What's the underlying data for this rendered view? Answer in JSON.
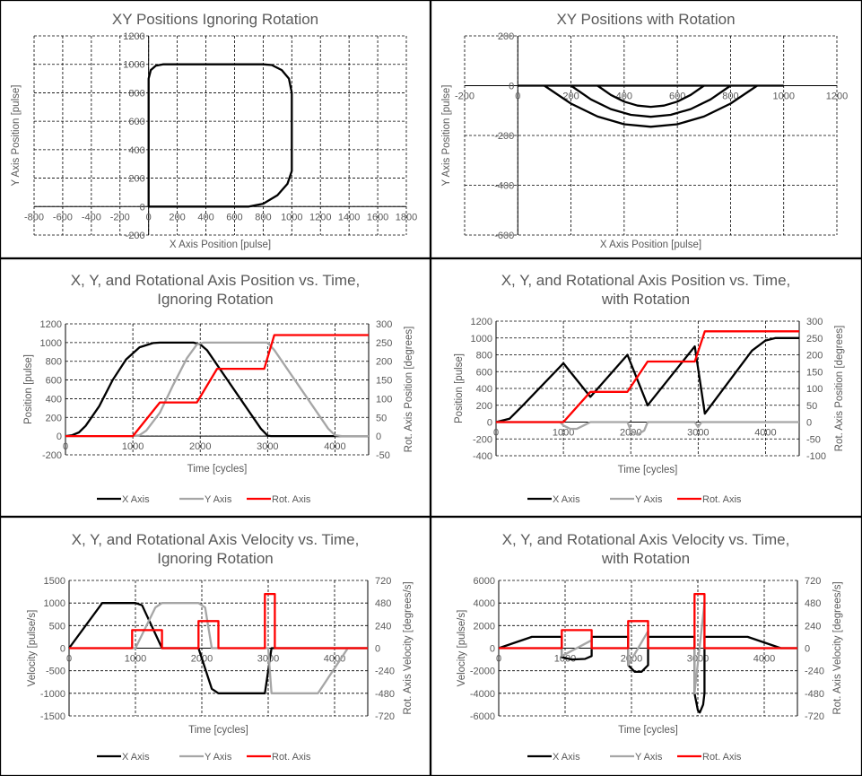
{
  "chart_data": [
    {
      "type": "scatter",
      "title": [
        "XY Positions Ignoring Rotation"
      ],
      "xlabel": "X Axis Position [pulse]",
      "ylabel": "Y Axis Position [pulse]",
      "xlim": [
        -800,
        1800
      ],
      "xstep": 200,
      "ylim": [
        -200,
        1200
      ],
      "ystep": 200,
      "grid": true,
      "legend": "none",
      "series": [
        {
          "color": "#000000",
          "points": [
            [
              0,
              0
            ],
            [
              700,
              0
            ],
            [
              800,
              20
            ],
            [
              900,
              80
            ],
            [
              970,
              160
            ],
            [
              1000,
              250
            ],
            [
              1000,
              800
            ],
            [
              980,
              900
            ],
            [
              930,
              960
            ],
            [
              860,
              995
            ],
            [
              800,
              1000
            ],
            [
              100,
              1000
            ],
            [
              50,
              990
            ],
            [
              15,
              960
            ],
            [
              0,
              900
            ],
            [
              0,
              0
            ]
          ]
        }
      ]
    },
    {
      "type": "scatter",
      "title": [
        "XY Positions with Rotation"
      ],
      "xlabel": "X Axis Position [pulse]",
      "ylabel": "Y Axis Position [pulse]",
      "xlim": [
        -200,
        1200
      ],
      "xstep": 200,
      "ylim": [
        -600,
        200
      ],
      "ystep": 200,
      "grid": true,
      "legend": "none",
      "series": [
        {
          "color": "#000000",
          "points": [
            [
              0,
              0
            ],
            [
              1000,
              0
            ]
          ]
        },
        {
          "color": "#000000",
          "points": [
            [
              300,
              0
            ],
            [
              350,
              -37
            ],
            [
              400,
              -64
            ],
            [
              450,
              -80
            ],
            [
              500,
              -85
            ],
            [
              550,
              -80
            ],
            [
              600,
              -64
            ],
            [
              650,
              -37
            ],
            [
              700,
              0
            ]
          ]
        },
        {
          "color": "#000000",
          "points": [
            [
              200,
              0
            ],
            [
              275,
              -55
            ],
            [
              350,
              -94
            ],
            [
              425,
              -117
            ],
            [
              500,
              -125
            ],
            [
              575,
              -117
            ],
            [
              650,
              -94
            ],
            [
              725,
              -55
            ],
            [
              800,
              0
            ]
          ]
        },
        {
          "color": "#000000",
          "points": [
            [
              100,
              0
            ],
            [
              200,
              -72
            ],
            [
              300,
              -124
            ],
            [
              400,
              -155
            ],
            [
              500,
              -165
            ],
            [
              600,
              -155
            ],
            [
              700,
              -124
            ],
            [
              800,
              -72
            ],
            [
              900,
              0
            ]
          ]
        }
      ]
    },
    {
      "type": "line",
      "title": [
        "X, Y, and Rotational Axis Position vs. Time,",
        "Ignoring Rotation"
      ],
      "xlabel": "Time [cycles]",
      "ylabel": "Position [pulse]",
      "y2label": "Rot. Axis Position [degrees]",
      "xlim": [
        0,
        4500
      ],
      "xstep": 1000,
      "ylim": [
        -200,
        1200
      ],
      "ystep": 200,
      "y2lim": [
        -50,
        300
      ],
      "y2step": 50,
      "grid": true,
      "legend": "bottom",
      "series": [
        {
          "name": "X Axis",
          "color": "#000000",
          "axis": "left",
          "points": [
            [
              0,
              0
            ],
            [
              100,
              10
            ],
            [
              200,
              40
            ],
            [
              300,
              110
            ],
            [
              500,
              320
            ],
            [
              700,
              600
            ],
            [
              900,
              820
            ],
            [
              1100,
              950
            ],
            [
              1300,
              995
            ],
            [
              1400,
              1000
            ],
            [
              1900,
              1000
            ],
            [
              2000,
              980
            ],
            [
              2100,
              920
            ],
            [
              2900,
              80
            ],
            [
              3000,
              5
            ],
            [
              3050,
              0
            ],
            [
              4500,
              0
            ]
          ]
        },
        {
          "name": "Y Axis",
          "color": "#a6a6a6",
          "axis": "left",
          "points": [
            [
              0,
              0
            ],
            [
              1000,
              0
            ],
            [
              1100,
              10
            ],
            [
              1200,
              60
            ],
            [
              1400,
              250
            ],
            [
              1600,
              550
            ],
            [
              1800,
              830
            ],
            [
              1950,
              980
            ],
            [
              2050,
              1000
            ],
            [
              3000,
              1000
            ],
            [
              3100,
              920
            ],
            [
              3900,
              80
            ],
            [
              4000,
              10
            ],
            [
              4100,
              0
            ],
            [
              4500,
              0
            ]
          ]
        },
        {
          "name": "Rot. Axis",
          "color": "#ff0000",
          "axis": "right",
          "points": [
            [
              0,
              0
            ],
            [
              1000,
              0
            ],
            [
              1400,
              90
            ],
            [
              1950,
              90
            ],
            [
              2250,
              180
            ],
            [
              2950,
              180
            ],
            [
              3100,
              270
            ],
            [
              4500,
              270
            ]
          ]
        }
      ]
    },
    {
      "type": "line",
      "title": [
        "X, Y, and Rotational Axis Position vs. Time,",
        "with Rotation"
      ],
      "xlabel": "Time [cycles]",
      "ylabel": "Position [pulse]",
      "y2label": "Rot. Axis Position [degrees]",
      "xlim": [
        0,
        4500
      ],
      "xstep": 1000,
      "ylim": [
        -400,
        1200
      ],
      "ystep": 200,
      "y2lim": [
        -100,
        300
      ],
      "y2step": 50,
      "grid": true,
      "legend": "bottom",
      "series": [
        {
          "name": "X Axis",
          "color": "#000000",
          "axis": "left",
          "points": [
            [
              0,
              0
            ],
            [
              200,
              40
            ],
            [
              400,
              200
            ],
            [
              1000,
              700
            ],
            [
              1400,
              300
            ],
            [
              1950,
              800
            ],
            [
              2250,
              200
            ],
            [
              2950,
              900
            ],
            [
              3100,
              100
            ],
            [
              3800,
              850
            ],
            [
              4000,
              970
            ],
            [
              4150,
              1000
            ],
            [
              4500,
              1000
            ]
          ]
        },
        {
          "name": "Y Axis",
          "color": "#a6a6a6",
          "axis": "left",
          "points": [
            [
              0,
              0
            ],
            [
              950,
              0
            ],
            [
              1000,
              -40
            ],
            [
              1100,
              -80
            ],
            [
              1200,
              -80
            ],
            [
              1300,
              -40
            ],
            [
              1400,
              0
            ],
            [
              1950,
              0
            ],
            [
              2000,
              -100
            ],
            [
              2100,
              -150
            ],
            [
              2200,
              -100
            ],
            [
              2250,
              0
            ],
            [
              2950,
              0
            ],
            [
              3000,
              -60
            ],
            [
              3050,
              0
            ],
            [
              4500,
              0
            ]
          ]
        },
        {
          "name": "Rot. Axis",
          "color": "#ff0000",
          "axis": "right",
          "points": [
            [
              0,
              0
            ],
            [
              1000,
              0
            ],
            [
              1400,
              90
            ],
            [
              1950,
              90
            ],
            [
              2250,
              180
            ],
            [
              2950,
              180
            ],
            [
              3100,
              270
            ],
            [
              4500,
              270
            ]
          ]
        }
      ]
    },
    {
      "type": "line",
      "title": [
        "X, Y, and Rotational Axis Velocity vs. Time,",
        "Ignoring Rotation"
      ],
      "xlabel": "Time [cycles]",
      "ylabel": "Velocity [pulse/s]",
      "y2label": "Rot. Axis Velocity [degrees/s]",
      "xlim": [
        0,
        4500
      ],
      "xstep": 1000,
      "ylim": [
        -1500,
        1500
      ],
      "ystep": 500,
      "y2lim": [
        -720,
        720
      ],
      "y2step": 240,
      "grid": true,
      "legend": "bottom",
      "series": [
        {
          "name": "X Axis",
          "color": "#000000",
          "axis": "left",
          "points": [
            [
              0,
              0
            ],
            [
              500,
              1000
            ],
            [
              1000,
              1000
            ],
            [
              1100,
              950
            ],
            [
              1400,
              0
            ],
            [
              1950,
              0
            ],
            [
              2150,
              -900
            ],
            [
              2250,
              -1000
            ],
            [
              2950,
              -1000
            ],
            [
              3050,
              0
            ],
            [
              4500,
              0
            ]
          ]
        },
        {
          "name": "Y Axis",
          "color": "#a6a6a6",
          "axis": "left",
          "points": [
            [
              0,
              0
            ],
            [
              1000,
              0
            ],
            [
              1300,
              900
            ],
            [
              1400,
              1000
            ],
            [
              1950,
              1000
            ],
            [
              2050,
              900
            ],
            [
              2150,
              0
            ],
            [
              3000,
              0
            ],
            [
              3050,
              -1000
            ],
            [
              3750,
              -1000
            ],
            [
              4200,
              0
            ],
            [
              4500,
              0
            ]
          ]
        },
        {
          "name": "Rot. Axis",
          "color": "#ff0000",
          "axis": "right",
          "points": [
            [
              0,
              0
            ],
            [
              950,
              0
            ],
            [
              950,
              192
            ],
            [
              1400,
              192
            ],
            [
              1400,
              0
            ],
            [
              1950,
              0
            ],
            [
              1950,
              288
            ],
            [
              2250,
              288
            ],
            [
              2250,
              0
            ],
            [
              2950,
              0
            ],
            [
              2950,
              576
            ],
            [
              3100,
              576
            ],
            [
              3100,
              0
            ],
            [
              4500,
              0
            ]
          ]
        }
      ]
    },
    {
      "type": "line",
      "title": [
        "X, Y, and Rotational Axis Velocity vs. Time,",
        "with Rotation"
      ],
      "xlabel": "Time [cycles]",
      "ylabel": "Velocity [pulse/s]",
      "y2label": "Rot. Axis Velocity [degrees/s]",
      "xlim": [
        0,
        4500
      ],
      "xstep": 1000,
      "ylim": [
        -6000,
        6000
      ],
      "ystep": 2000,
      "y2lim": [
        -720,
        720
      ],
      "y2step": 240,
      "grid": true,
      "legend": "bottom",
      "series": [
        {
          "name": "X Axis",
          "color": "#000000",
          "axis": "left",
          "points": [
            [
              0,
              0
            ],
            [
              500,
              1000
            ],
            [
              950,
              1000
            ],
            [
              950,
              -800
            ],
            [
              1100,
              -1000
            ],
            [
              1300,
              -950
            ],
            [
              1400,
              -700
            ],
            [
              1400,
              1000
            ],
            [
              1950,
              1000
            ],
            [
              1950,
              -1500
            ],
            [
              2050,
              -2100
            ],
            [
              2150,
              -2100
            ],
            [
              2250,
              -1500
            ],
            [
              2250,
              1000
            ],
            [
              2950,
              1000
            ],
            [
              2950,
              -4000
            ],
            [
              3000,
              -5500
            ],
            [
              3030,
              -5700
            ],
            [
              3080,
              -5000
            ],
            [
              3100,
              -4000
            ],
            [
              3100,
              1000
            ],
            [
              3750,
              1000
            ],
            [
              4250,
              0
            ],
            [
              4500,
              0
            ]
          ]
        },
        {
          "name": "Y Axis",
          "color": "#a6a6a6",
          "axis": "left",
          "points": [
            [
              0,
              0
            ],
            [
              950,
              0
            ],
            [
              950,
              -700
            ],
            [
              1400,
              700
            ],
            [
              1400,
              0
            ],
            [
              1950,
              0
            ],
            [
              1950,
              -1500
            ],
            [
              2250,
              1500
            ],
            [
              2250,
              0
            ],
            [
              2950,
              0
            ],
            [
              2950,
              -4000
            ],
            [
              3100,
              4000
            ],
            [
              3100,
              0
            ],
            [
              4500,
              0
            ]
          ]
        },
        {
          "name": "Rot. Axis",
          "color": "#ff0000",
          "axis": "right",
          "points": [
            [
              0,
              0
            ],
            [
              950,
              0
            ],
            [
              950,
              192
            ],
            [
              1400,
              192
            ],
            [
              1400,
              0
            ],
            [
              1950,
              0
            ],
            [
              1950,
              288
            ],
            [
              2250,
              288
            ],
            [
              2250,
              0
            ],
            [
              2950,
              0
            ],
            [
              2950,
              576
            ],
            [
              3100,
              576
            ],
            [
              3100,
              0
            ],
            [
              4500,
              0
            ]
          ]
        }
      ]
    }
  ]
}
